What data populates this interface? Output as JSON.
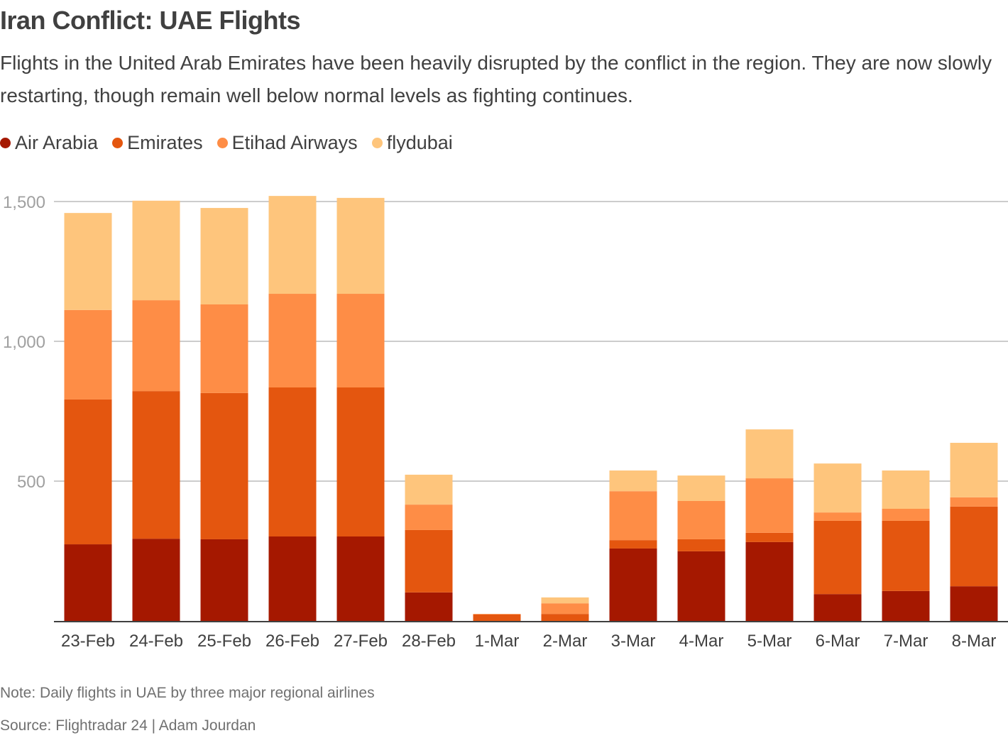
{
  "header": {
    "title": "Iran Conflict: UAE Flights",
    "subtitle": "Flights in the United Arab Emirates have been heavily disrupted by the conflict in the region. They are now slowly restarting, though remain well below normal levels as fighting continues."
  },
  "footer": {
    "note": "Note: Daily flights in UAE by three major regional airlines",
    "source": "Source: Flightradar 24 | Adam Jourdan"
  },
  "chart_data": {
    "type": "bar",
    "stacked": true,
    "title": "Iran Conflict: UAE Flights",
    "xlabel": "",
    "ylabel": "",
    "ylim": [
      0,
      1500
    ],
    "yticks": [
      500,
      1000,
      1500
    ],
    "ytick_labels": [
      "500",
      "1,000",
      "1,500"
    ],
    "grid": true,
    "legend_position": "top-left",
    "categories": [
      "23-Feb",
      "24-Feb",
      "25-Feb",
      "26-Feb",
      "27-Feb",
      "28-Feb",
      "1-Mar",
      "2-Mar",
      "3-Mar",
      "4-Mar",
      "5-Mar",
      "6-Mar",
      "7-Mar",
      "8-Mar"
    ],
    "series": [
      {
        "name": "Air Arabia",
        "color": "#a51800",
        "values": [
          274,
          294,
          292,
          302,
          302,
          102,
          0,
          0,
          259,
          249,
          282,
          96,
          107,
          124
        ]
      },
      {
        "name": "Emirates",
        "color": "#e4560f",
        "values": [
          518,
          528,
          523,
          533,
          533,
          223,
          23,
          25,
          30,
          43,
          33,
          262,
          251,
          285
        ]
      },
      {
        "name": "Etihad Airways",
        "color": "#fe8d46",
        "values": [
          320,
          325,
          317,
          335,
          335,
          91,
          2,
          38,
          175,
          137,
          195,
          30,
          43,
          33
        ]
      },
      {
        "name": "flydubai",
        "color": "#fec57c",
        "values": [
          347,
          356,
          345,
          350,
          343,
          107,
          0,
          21,
          74,
          91,
          175,
          175,
          137,
          195
        ]
      }
    ]
  }
}
